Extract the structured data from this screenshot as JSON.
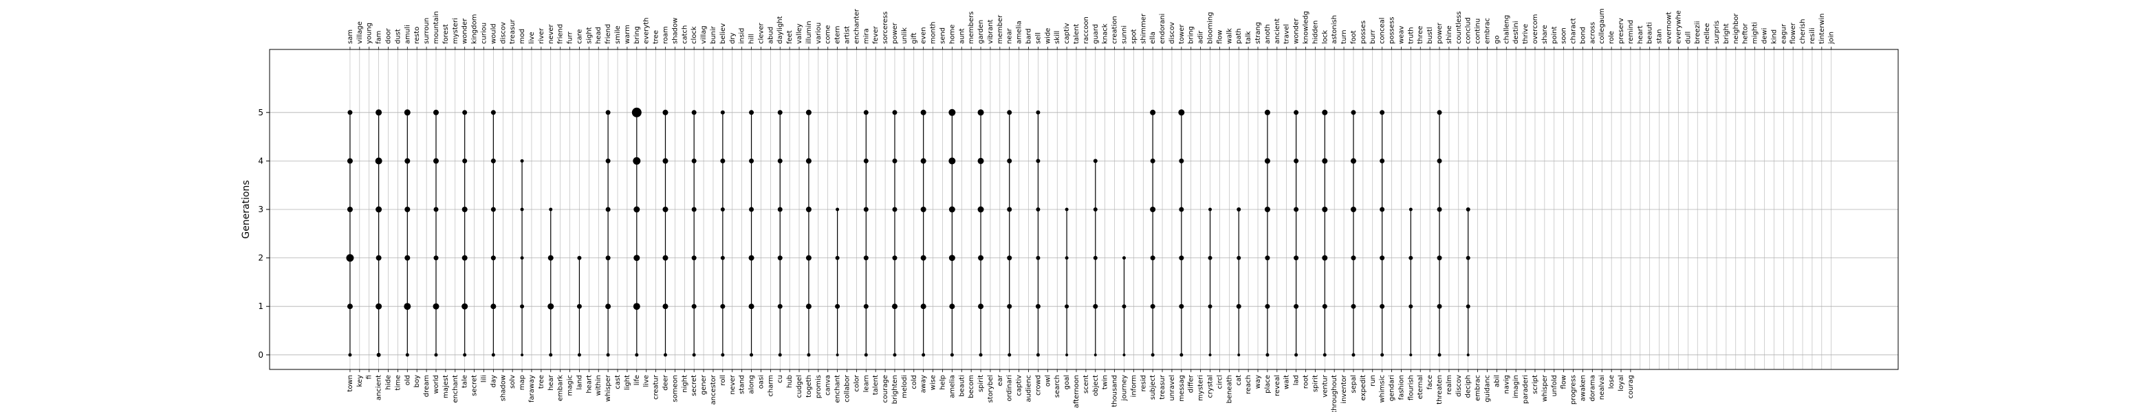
{
  "chart_data": {
    "type": "scatter",
    "title": "",
    "xlabel": "",
    "ylabel": "Generations",
    "ylim": [
      -0.3,
      6.3
    ],
    "yticks": [
      0,
      1,
      2,
      3,
      4,
      5
    ],
    "grid": true,
    "legend": "none",
    "marker_color": "#000000",
    "grid_color": "#b0b0b0",
    "x_labels_bottom": [
      "town",
      "key",
      "fi",
      "ancient",
      "hide",
      "time",
      "old",
      "boy",
      "dream",
      "world",
      "majest",
      "enchant",
      "tale",
      "secret",
      "lili",
      "day",
      "shadow",
      "solv",
      "map",
      "faraway",
      "tree",
      "hear",
      "embark",
      "magic",
      "land",
      "heart",
      "within",
      "whisper",
      "cast",
      "light",
      "life",
      "live",
      "creatur",
      "deer",
      "someon",
      "night",
      "secret",
      "gener",
      "ancestor",
      "roll",
      "never",
      "stand",
      "along",
      "oasi",
      "charm",
      "cu",
      "hub",
      "cudgel",
      "togeth",
      "promis",
      "canva",
      "enchant",
      "collabor",
      "color",
      "learn",
      "talent",
      "courage",
      "brighten",
      "melodi",
      "cold",
      "away",
      "wise",
      "help",
      "amelia",
      "beauti",
      "becom",
      "spirit",
      "storybel",
      "ear",
      "ordinari",
      "captiv",
      "audienc",
      "crowd",
      "owl",
      "search",
      "goal",
      "afternoon",
      "scent",
      "object",
      "twin",
      "thousand",
      "journey",
      "inform",
      "resid",
      "subject",
      "treasur",
      "unravel",
      "messag",
      "differ",
      "mysteri",
      "crystal",
      "circl",
      "beneath",
      "cat",
      "reach",
      "way",
      "place",
      "reveal",
      "wait",
      "lad",
      "root",
      "spirit",
      "ventur",
      "throughout",
      "inventor",
      "sepal",
      "expedit",
      "run",
      "whimsic",
      "gendari",
      "fashion",
      "flourish",
      "eternal",
      "face",
      "threaten",
      "realm",
      "discov",
      "deciph",
      "embrac",
      "guidanc",
      "abil",
      "navig",
      "imagin",
      "paraderi",
      "script",
      "whisper",
      "unfold",
      "flow",
      "progress",
      "awaken",
      "dorama",
      "nealvai",
      "lose",
      "loyal",
      "courag"
    ],
    "x_labels_top": [
      "sam",
      "village",
      "young",
      "fam",
      "door",
      "dust",
      "amuli",
      "resto",
      "surroun",
      "mountain",
      "forest",
      "mysteri",
      "wonder",
      "kingdom",
      "curiou",
      "would",
      "discov",
      "treasur",
      "mod",
      "live",
      "river",
      "never",
      "friend",
      "furr",
      "care",
      "sight",
      "head",
      "friend",
      "smile",
      "warm",
      "bring",
      "everyth",
      "tree",
      "roam",
      "shadow",
      "catch",
      "clock",
      "villag",
      "bunir",
      "believ",
      "dry",
      "insid",
      "hill",
      "clever",
      "abud",
      "daylight",
      "feet",
      "valley",
      "illumin",
      "variou",
      "come",
      "etern",
      "artist",
      "enchanter",
      "mira",
      "fever",
      "sorceress",
      "power",
      "unlik",
      "gift",
      "even",
      "month",
      "send",
      "home",
      "aunt",
      "members",
      "garden",
      "vibrant",
      "member",
      "near",
      "amelia",
      "bard",
      "sell",
      "wide",
      "skill",
      "captiv",
      "talent",
      "raccoon",
      "guard",
      "knack",
      "creation",
      "sunni",
      "spot",
      "shimmer",
      "ella",
      "endorani",
      "discov",
      "tower",
      "bring",
      "adir",
      "blooming",
      "flow",
      "walk",
      "path",
      "talk",
      "strang",
      "anoth",
      "ancient",
      "travel",
      "wonder",
      "knowledg",
      "hidden",
      "lock",
      "astonish",
      "turn",
      "foot",
      "posses",
      "burr",
      "conceal",
      "possess",
      "weav",
      "truth",
      "three",
      "bustl",
      "power",
      "shine",
      "countless",
      "conclud",
      "continu",
      "embrac",
      "go",
      "challeng",
      "destini",
      "thrive",
      "overcom",
      "share",
      "point",
      "soon",
      "charact",
      "bond",
      "across",
      "collegaum",
      "role",
      "preserv",
      "remind",
      "heart",
      "beauti",
      "stan",
      "evernowt",
      "everywhe",
      "dull",
      "breezii",
      "nellee",
      "surpris",
      "bright",
      "neighbor",
      "heftor",
      "mighti",
      "dewi",
      "kind",
      "eagur",
      "flower",
      "cherish",
      "resili",
      "tinterwin",
      "join"
    ],
    "columns": [
      {
        "g": [
          0,
          1,
          2,
          3,
          4,
          5
        ],
        "s": [
          3,
          6,
          9,
          6,
          6,
          5
        ]
      },
      {
        "g": [
          0,
          1,
          2,
          3,
          4,
          5
        ],
        "s": [
          4,
          7,
          6,
          7,
          8,
          7
        ]
      },
      {
        "g": [
          0,
          1,
          2,
          3,
          4,
          5
        ],
        "s": [
          3,
          8,
          6,
          6,
          6,
          7
        ]
      },
      {
        "g": [
          0,
          1,
          2,
          3,
          4,
          5
        ],
        "s": [
          3,
          7,
          5,
          5,
          6,
          6
        ]
      },
      {
        "g": [
          0,
          1,
          2,
          3,
          4,
          5
        ],
        "s": [
          3,
          7,
          6,
          6,
          5,
          5
        ]
      },
      {
        "g": [
          0,
          1,
          2,
          3,
          4,
          5
        ],
        "s": [
          3,
          6,
          5,
          5,
          5,
          5
        ]
      },
      {
        "g": [
          0,
          1,
          2,
          3,
          4
        ],
        "s": [
          2,
          4,
          3,
          3,
          3
        ]
      },
      {
        "g": [
          0,
          1,
          2,
          3
        ],
        "s": [
          3,
          7,
          6,
          3
        ]
      },
      {
        "g": [
          0,
          1,
          2
        ],
        "s": [
          3,
          5,
          4
        ]
      },
      {
        "g": [
          0,
          1,
          2,
          3,
          4,
          5
        ],
        "s": [
          3,
          6,
          5,
          5,
          5,
          5
        ]
      },
      {
        "g": [
          0,
          1,
          2,
          3,
          4,
          5
        ],
        "s": [
          3,
          8,
          7,
          7,
          9,
          12
        ]
      },
      {
        "g": [
          0,
          1,
          2,
          3,
          4,
          5
        ],
        "s": [
          3,
          6,
          6,
          6,
          6,
          6
        ]
      },
      {
        "g": [
          0,
          1,
          2,
          3,
          4,
          5
        ],
        "s": [
          3,
          5,
          5,
          5,
          5,
          5
        ]
      },
      {
        "g": [
          0,
          1,
          2,
          3,
          4,
          5
        ],
        "s": [
          3,
          5,
          4,
          4,
          5,
          4
        ]
      },
      {
        "g": [
          0,
          1,
          2,
          3,
          4,
          5
        ],
        "s": [
          3,
          6,
          6,
          5,
          5,
          5
        ]
      },
      {
        "g": [
          0,
          1,
          2,
          3,
          4,
          5
        ],
        "s": [
          3,
          5,
          5,
          5,
          5,
          5
        ]
      },
      {
        "g": [
          0,
          1,
          2,
          3,
          4,
          5
        ],
        "s": [
          3,
          6,
          6,
          6,
          6,
          6
        ]
      },
      {
        "g": [
          0,
          1,
          2,
          3
        ],
        "s": [
          2,
          5,
          4,
          3
        ]
      },
      {
        "g": [
          0,
          1,
          2,
          3,
          4,
          5
        ],
        "s": [
          3,
          5,
          5,
          5,
          5,
          5
        ]
      },
      {
        "g": [
          0,
          1,
          2,
          3,
          4,
          5
        ],
        "s": [
          3,
          6,
          5,
          5,
          5,
          5
        ]
      },
      {
        "g": [
          0,
          1,
          2,
          3,
          4,
          5
        ],
        "s": [
          3,
          6,
          6,
          6,
          6,
          6
        ]
      },
      {
        "g": [
          0,
          1,
          2,
          3,
          4,
          5
        ],
        "s": [
          3,
          6,
          7,
          7,
          8,
          8
        ]
      },
      {
        "g": [
          0,
          1,
          2,
          3,
          4,
          5
        ],
        "s": [
          3,
          6,
          6,
          7,
          7,
          7
        ]
      },
      {
        "g": [
          0,
          1,
          2,
          3,
          4,
          5
        ],
        "s": [
          3,
          5,
          5,
          5,
          5,
          5
        ]
      },
      {
        "g": [
          0,
          1,
          2,
          3,
          4,
          5
        ],
        "s": [
          3,
          5,
          4,
          4,
          4,
          4
        ]
      },
      {
        "g": [
          0,
          1,
          2,
          3
        ],
        "s": [
          2,
          4,
          3,
          3
        ]
      },
      {
        "g": [
          0,
          1,
          2,
          3,
          4
        ],
        "s": [
          2,
          5,
          4,
          4,
          4
        ]
      },
      {
        "g": [
          0,
          1,
          2
        ],
        "s": [
          2,
          4,
          3
        ]
      },
      {
        "g": [
          0,
          1,
          2,
          3,
          4,
          5
        ],
        "s": [
          3,
          5,
          5,
          6,
          5,
          6
        ]
      },
      {
        "g": [
          0,
          1,
          2,
          3,
          4,
          5
        ],
        "s": [
          3,
          5,
          5,
          5,
          5,
          7
        ]
      },
      {
        "g": [
          0,
          1,
          2,
          3
        ],
        "s": [
          2,
          4,
          4,
          3
        ]
      },
      {
        "g": [
          0,
          1,
          2,
          3
        ],
        "s": [
          2,
          5,
          4,
          4
        ]
      },
      {
        "g": [
          0,
          1,
          2,
          3,
          4,
          5
        ],
        "s": [
          3,
          5,
          5,
          6,
          6,
          6
        ]
      },
      {
        "g": [
          0,
          1,
          2,
          3,
          4,
          5
        ],
        "s": [
          3,
          5,
          5,
          5,
          5,
          5
        ]
      },
      {
        "g": [
          0,
          1,
          2,
          3,
          4,
          5
        ],
        "s": [
          3,
          5,
          6,
          6,
          6,
          6
        ]
      },
      {
        "g": [
          0,
          1,
          2,
          3,
          4,
          5
        ],
        "s": [
          3,
          5,
          5,
          6,
          6,
          5
        ]
      },
      {
        "g": [
          0,
          1,
          2,
          3,
          4,
          5
        ],
        "s": [
          3,
          5,
          5,
          5,
          5,
          5
        ]
      },
      {
        "g": [
          0,
          1,
          2,
          3
        ],
        "s": [
          2,
          4,
          4,
          3
        ]
      },
      {
        "g": [
          0,
          1,
          2,
          3,
          4,
          5
        ],
        "s": [
          3,
          5,
          5,
          5,
          5,
          5
        ]
      },
      {
        "g": [
          0,
          1,
          2,
          3
        ],
        "s": [
          2,
          4,
          4,
          4
        ]
      }
    ]
  }
}
